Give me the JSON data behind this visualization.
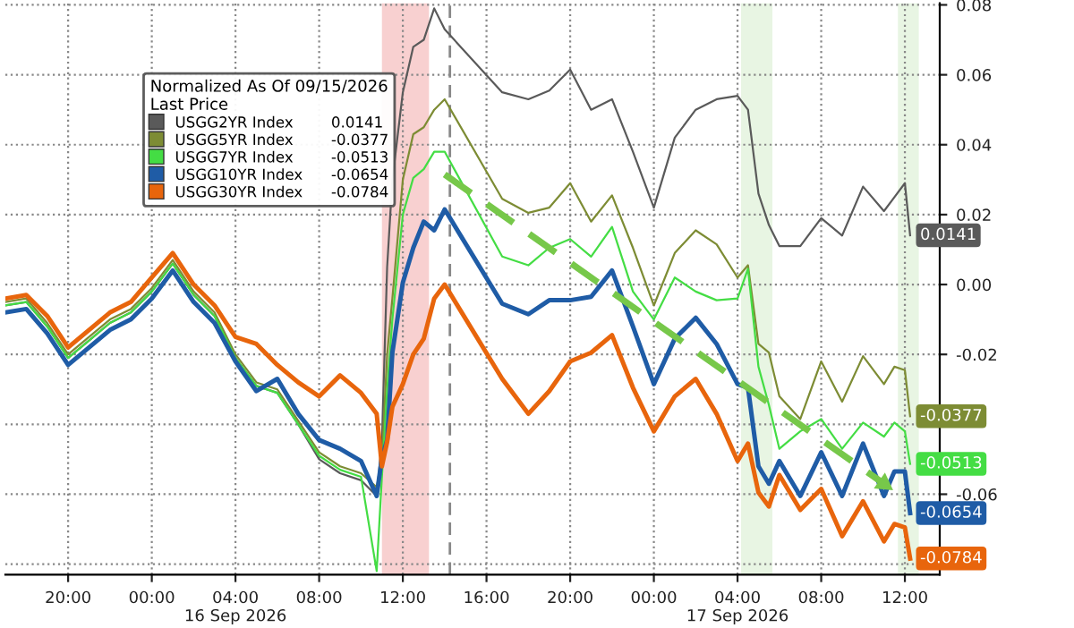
{
  "chart_data": {
    "type": "line",
    "legend_title": "Normalized As Of 09/15/2026\nLast Price",
    "legend": "top left",
    "grid": true,
    "x": [
      "2026-09-15T17:00",
      "2026-09-15T18:00",
      "2026-09-15T19:00",
      "2026-09-15T20:00",
      "2026-09-15T21:00",
      "2026-09-15T22:00",
      "2026-09-15T23:00",
      "2026-09-16T00:00",
      "2026-09-16T01:00",
      "2026-09-16T02:00",
      "2026-09-16T03:00",
      "2026-09-16T04:00",
      "2026-09-16T05:00",
      "2026-09-16T06:00",
      "2026-09-16T07:00",
      "2026-09-16T08:00",
      "2026-09-16T09:00",
      "2026-09-16T10:00",
      "2026-09-16T10:45",
      "2026-09-16T11:00",
      "2026-09-16T11:15",
      "2026-09-16T11:30",
      "2026-09-16T12:00",
      "2026-09-16T12:30",
      "2026-09-16T13:00",
      "2026-09-16T13:30",
      "2026-09-16T14:00",
      "2026-09-16T16:45",
      "2026-09-16T18:00",
      "2026-09-16T19:00",
      "2026-09-16T20:00",
      "2026-09-16T21:00",
      "2026-09-16T22:00",
      "2026-09-16T23:00",
      "2026-09-17T00:00",
      "2026-09-17T01:00",
      "2026-09-17T02:00",
      "2026-09-17T03:00",
      "2026-09-17T04:00",
      "2026-09-17T04:30",
      "2026-09-17T05:00",
      "2026-09-17T05:30",
      "2026-09-17T06:00",
      "2026-09-17T07:00",
      "2026-09-17T08:00",
      "2026-09-17T09:00",
      "2026-09-17T10:00",
      "2026-09-17T11:00",
      "2026-09-17T11:30",
      "2026-09-17T12:00",
      "2026-09-17T12:15"
    ],
    "xlim": [
      "2026-09-15T17:00",
      "2026-09-17T13:40"
    ],
    "xticks": [
      {
        "value": "2026-09-15T20:00",
        "label": "20:00"
      },
      {
        "value": "2026-09-16T00:00",
        "label": "00:00"
      },
      {
        "value": "2026-09-16T04:00",
        "label": "04:00\n16 Sep 2026"
      },
      {
        "value": "2026-09-16T08:00",
        "label": "08:00"
      },
      {
        "value": "2026-09-16T12:00",
        "label": "12:00"
      },
      {
        "value": "2026-09-16T16:00",
        "label": "16:00"
      },
      {
        "value": "2026-09-16T20:00",
        "label": "20:00"
      },
      {
        "value": "2026-09-17T00:00",
        "label": "00:00"
      },
      {
        "value": "2026-09-17T04:00",
        "label": "04:00\n17 Sep 2026"
      },
      {
        "value": "2026-09-17T08:00",
        "label": "08:00"
      },
      {
        "value": "2026-09-17T12:00",
        "label": "12:00"
      }
    ],
    "ylim": [
      -0.083,
      0.0805
    ],
    "yticks": [
      {
        "value": -0.08,
        "label": null
      },
      -0.06,
      {
        "value": -0.04,
        "label": null
      },
      -0.02,
      {
        "value": 0,
        "label": "0.00"
      },
      0.02,
      0.04,
      0.06,
      0.08
    ],
    "bands": [
      {
        "axis": "x",
        "from": "2026-09-16T11:00",
        "to": "2026-09-16T13:15",
        "color": "#f6c4c4"
      },
      {
        "axis": "x",
        "from": "2026-09-17T04:10",
        "to": "2026-09-17T05:40",
        "color": "#e2f2dc"
      },
      {
        "axis": "x",
        "from": "2026-09-17T11:40",
        "to": "2026-09-17T12:40",
        "color": "#e2f2dc"
      }
    ],
    "ref_lines": [
      {
        "axis": "x",
        "value": "2026-09-16T14:15",
        "color": "#888888",
        "line_style": "dashed"
      }
    ],
    "series": [
      {
        "name": "USGG2YR Index",
        "color": "#5a5a5a",
        "values": [
          -0.006,
          -0.005,
          -0.012,
          -0.021,
          -0.016,
          -0.011,
          -0.008,
          -0.002,
          0.006,
          -0.003,
          -0.009,
          -0.021,
          -0.029,
          -0.031,
          -0.04,
          -0.05,
          -0.054,
          -0.056,
          -0.0605,
          -0.045,
          0.005,
          0.03,
          0.055,
          0.068,
          0.07,
          0.079,
          0.073,
          0.055,
          0.053,
          0.0555,
          0.0615,
          0.05,
          0.053,
          0.038,
          0.022,
          0.042,
          0.05,
          0.053,
          0.054,
          0.05,
          0.026,
          0.017,
          0.011,
          0.011,
          0.019,
          0.014,
          0.028,
          0.021,
          0.025,
          0.029,
          0.0141
        ],
        "value_labels": [
          null,
          null,
          null,
          null,
          null,
          null,
          null,
          null,
          null,
          null,
          null,
          null,
          null,
          null,
          null,
          null,
          null,
          null,
          null,
          null,
          null,
          null,
          null,
          null,
          null,
          null,
          null,
          null,
          null,
          null,
          null,
          null,
          null,
          null,
          null,
          null,
          null,
          null,
          null,
          null,
          null,
          null,
          null,
          null,
          null,
          null,
          null,
          null,
          null,
          null,
          "0.0141"
        ]
      },
      {
        "name": "USGG5YR Index",
        "color": "#7d8c34",
        "values": [
          -0.005,
          -0.004,
          -0.011,
          -0.02,
          -0.015,
          -0.01,
          -0.007,
          -0.001,
          0.007,
          -0.002,
          -0.008,
          -0.02,
          -0.028,
          -0.03,
          -0.039,
          -0.048,
          -0.052,
          -0.054,
          -0.058,
          -0.05,
          -0.02,
          -0.004,
          0.03,
          0.043,
          0.045,
          0.05,
          0.053,
          0.0245,
          0.0205,
          0.022,
          0.029,
          0.018,
          0.0255,
          0.0105,
          -0.006,
          0.009,
          0.0155,
          0.0115,
          0.002,
          0.0055,
          -0.017,
          -0.0195,
          -0.032,
          -0.0385,
          -0.022,
          -0.0335,
          -0.0205,
          -0.0285,
          -0.0235,
          -0.0245,
          -0.0377
        ],
        "value_labels": [
          null,
          null,
          null,
          null,
          null,
          null,
          null,
          null,
          null,
          null,
          null,
          null,
          null,
          null,
          null,
          null,
          null,
          null,
          null,
          null,
          null,
          null,
          null,
          null,
          null,
          null,
          null,
          null,
          null,
          null,
          null,
          null,
          null,
          null,
          null,
          null,
          null,
          null,
          null,
          null,
          null,
          null,
          null,
          null,
          null,
          null,
          null,
          null,
          null,
          null,
          "-0.0377"
        ]
      },
      {
        "name": "USGG7YR Index",
        "color": "#44dd44",
        "values": [
          -0.006,
          -0.005,
          -0.012,
          -0.021,
          -0.016,
          -0.011,
          -0.008,
          -0.002,
          0.006,
          -0.003,
          -0.009,
          -0.021,
          -0.029,
          -0.031,
          -0.04,
          -0.049,
          -0.053,
          -0.055,
          -0.082,
          -0.055,
          -0.03,
          -0.01,
          0.02,
          0.0305,
          0.033,
          0.038,
          0.038,
          0.008,
          0.0055,
          0.0105,
          0.013,
          0.008,
          0.0165,
          -0.002,
          -0.01,
          0.002,
          -0.002,
          -0.0045,
          -0.004,
          0.0045,
          -0.0235,
          -0.0345,
          -0.047,
          -0.042,
          -0.0385,
          -0.047,
          -0.0395,
          -0.0435,
          -0.0395,
          -0.042,
          -0.0513
        ],
        "value_labels": [
          null,
          null,
          null,
          null,
          null,
          null,
          null,
          null,
          null,
          null,
          null,
          null,
          null,
          null,
          null,
          null,
          null,
          null,
          null,
          null,
          null,
          null,
          null,
          null,
          null,
          null,
          null,
          null,
          null,
          null,
          null,
          null,
          null,
          null,
          null,
          null,
          null,
          null,
          null,
          null,
          null,
          null,
          null,
          null,
          null,
          null,
          null,
          null,
          null,
          null,
          "-0.0513"
        ]
      },
      {
        "name": "USGG10YR Index",
        "color": "#1f5ca6",
        "values": [
          -0.008,
          -0.007,
          -0.014,
          -0.023,
          -0.018,
          -0.013,
          -0.01,
          -0.004,
          0.004,
          -0.005,
          -0.011,
          -0.022,
          -0.0305,
          -0.027,
          -0.037,
          -0.0445,
          -0.047,
          -0.0505,
          -0.0605,
          -0.0495,
          -0.0445,
          -0.0195,
          0.0005,
          0.0105,
          0.018,
          0.0155,
          0.0215,
          -0.0055,
          -0.0085,
          -0.0045,
          -0.0045,
          -0.0035,
          0.004,
          -0.012,
          -0.0285,
          -0.0155,
          -0.0095,
          -0.017,
          -0.0285,
          -0.0295,
          -0.052,
          -0.057,
          -0.0505,
          -0.0605,
          -0.048,
          -0.0605,
          -0.0455,
          -0.0605,
          -0.0535,
          -0.0535,
          -0.0654
        ],
        "value_labels": [
          null,
          null,
          null,
          null,
          null,
          null,
          null,
          null,
          null,
          null,
          null,
          null,
          null,
          null,
          null,
          null,
          null,
          null,
          null,
          null,
          null,
          null,
          null,
          null,
          null,
          null,
          null,
          null,
          null,
          null,
          null,
          null,
          null,
          null,
          null,
          null,
          null,
          null,
          null,
          null,
          null,
          null,
          null,
          null,
          null,
          null,
          null,
          null,
          null,
          null,
          "-0.0654"
        ]
      },
      {
        "name": "USGG30YR Index",
        "color": "#e8650c",
        "values": [
          -0.004,
          -0.003,
          -0.009,
          -0.018,
          -0.013,
          -0.008,
          -0.005,
          0.002,
          0.009,
          0.0,
          -0.006,
          -0.015,
          -0.017,
          -0.023,
          -0.028,
          -0.032,
          -0.026,
          -0.031,
          -0.037,
          -0.052,
          -0.045,
          -0.035,
          -0.0285,
          -0.02,
          -0.0155,
          -0.004,
          0.0,
          -0.027,
          -0.037,
          -0.0305,
          -0.022,
          -0.0195,
          -0.0145,
          -0.0295,
          -0.042,
          -0.032,
          -0.027,
          -0.037,
          -0.0505,
          -0.0455,
          -0.0595,
          -0.0635,
          -0.0545,
          -0.0645,
          -0.0585,
          -0.072,
          -0.062,
          -0.0735,
          -0.0685,
          -0.0695,
          -0.0784
        ],
        "value_labels": [
          null,
          null,
          null,
          null,
          null,
          null,
          null,
          null,
          null,
          null,
          null,
          null,
          null,
          null,
          null,
          null,
          null,
          null,
          null,
          null,
          null,
          null,
          null,
          null,
          null,
          null,
          null,
          null,
          null,
          null,
          null,
          null,
          null,
          null,
          null,
          null,
          null,
          null,
          null,
          null,
          null,
          null,
          null,
          null,
          null,
          null,
          null,
          null,
          null,
          null,
          "-0.0784"
        ]
      },
      {
        "type": "line",
        "color": "#77c84a",
        "line_style": "dashed",
        "x": [
          "2026-09-16T14:00",
          "2026-09-17T11:00"
        ],
        "values": [
          0.0315,
          -0.057
        ]
      }
    ]
  }
}
